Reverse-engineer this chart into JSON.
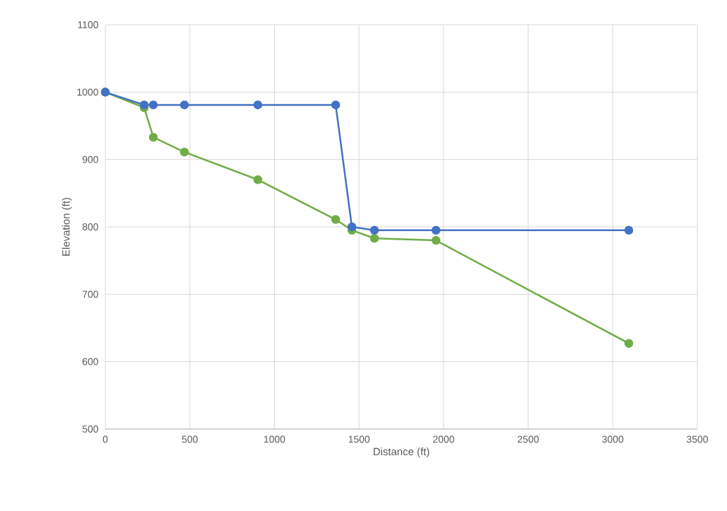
{
  "chart_data": {
    "type": "line",
    "xlabel": "Distance (ft)",
    "ylabel": "Elevation (ft)",
    "xlim": [
      0,
      3500
    ],
    "ylim": [
      500,
      1100
    ],
    "xticks": [
      0,
      500,
      1000,
      1500,
      2000,
      2500,
      3000,
      3500
    ],
    "yticks": [
      500,
      600,
      700,
      800,
      900,
      1000,
      1100
    ],
    "grid": true,
    "marker": "circle",
    "line_style": "solid",
    "series": [
      {
        "color": "#4472c4",
        "x": [
          0,
          230,
          284,
          468,
          902,
          1362,
          1458,
          1591,
          1955,
          3095
        ],
        "values": [
          1000,
          981,
          981,
          981,
          981,
          981,
          800,
          795,
          795,
          795
        ]
      },
      {
        "color": "#70ad47",
        "x": [
          0,
          230,
          284,
          468,
          902,
          1362,
          1458,
          1591,
          1955,
          3095
        ],
        "values": [
          1000,
          977,
          933,
          911,
          870,
          811,
          795,
          783,
          780,
          627
        ]
      }
    ]
  }
}
